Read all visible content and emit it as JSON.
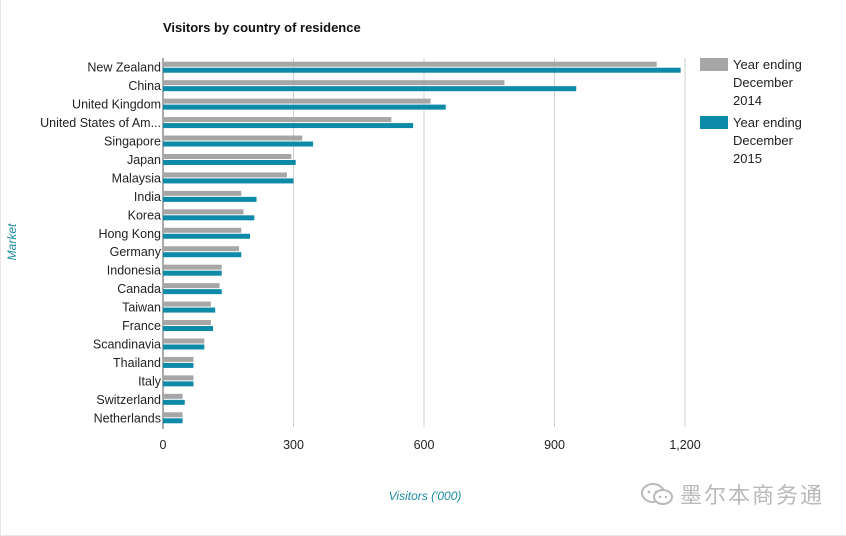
{
  "chart_data": {
    "type": "bar",
    "orientation": "horizontal",
    "title": "Visitors by country of residence",
    "xlabel": "Visitors ('000)",
    "ylabel": "Market",
    "xlim": [
      0,
      1200
    ],
    "xticks": [
      0,
      300,
      600,
      900,
      1200
    ],
    "xtick_labels": [
      "0",
      "300",
      "600",
      "900",
      "1,200"
    ],
    "grid": true,
    "legend_position": "right",
    "categories": [
      "New Zealand",
      "China",
      "United Kingdom",
      "United States of Am...",
      "Singapore",
      "Japan",
      "Malaysia",
      "India",
      "Korea",
      "Hong Kong",
      "Germany",
      "Indonesia",
      "Canada",
      "Taiwan",
      "France",
      "Scandinavia",
      "Thailand",
      "Italy",
      "Switzerland",
      "Netherlands"
    ],
    "series": [
      {
        "name": "Year ending December 2014",
        "legend_lines": [
          "Year ending",
          "December",
          "2014"
        ],
        "color": "#a6a6a6",
        "values": [
          1135,
          785,
          615,
          525,
          320,
          295,
          285,
          180,
          185,
          180,
          175,
          135,
          130,
          110,
          110,
          95,
          70,
          70,
          45,
          45
        ]
      },
      {
        "name": "Year ending December 2015",
        "legend_lines": [
          "Year ending",
          "December",
          "2015"
        ],
        "color": "#0d8aa8",
        "values": [
          1190,
          950,
          650,
          575,
          345,
          305,
          300,
          215,
          210,
          200,
          180,
          135,
          135,
          120,
          115,
          95,
          70,
          70,
          50,
          45
        ]
      }
    ]
  },
  "watermark": "墨尔本商务通",
  "colors": {
    "axis_label": "#1a8a9f",
    "grid": "#d0d0d0",
    "text": "#222222"
  }
}
